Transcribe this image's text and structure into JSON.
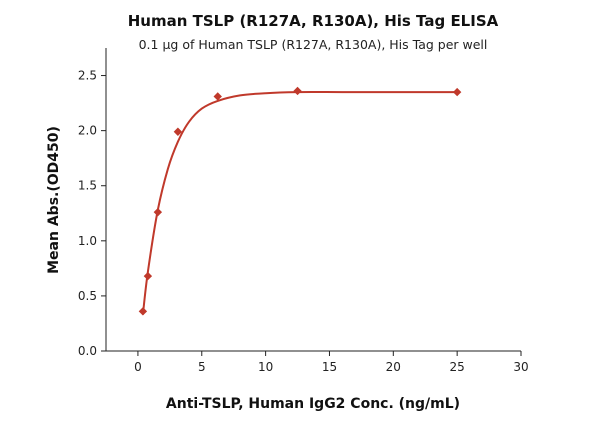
{
  "chart_data": {
    "type": "scatter",
    "title": "Human TSLP (R127A, R130A), His Tag ELISA",
    "subtitle": "0.1 µg of Human TSLP (R127A, R130A), His Tag per well",
    "xlabel": "Anti-TSLP, Human IgG2 Conc. (ng/mL)",
    "ylabel": "Mean Abs.(OD450)",
    "xlim": [
      -2.5,
      30
    ],
    "ylim": [
      0,
      2.75
    ],
    "xticks": [
      0,
      5,
      10,
      15,
      20,
      25,
      30
    ],
    "yticks": [
      0.0,
      0.5,
      1.0,
      1.5,
      2.0,
      2.5
    ],
    "xtick_labels": [
      "0",
      "5",
      "10",
      "15",
      "20",
      "25",
      "30"
    ],
    "ytick_labels": [
      "0.0",
      "0.5",
      "1.0",
      "1.5",
      "2.0",
      "2.5"
    ],
    "grid": false,
    "series": [
      {
        "x": [
          0.39,
          0.78,
          1.56,
          3.13,
          6.25,
          12.5,
          25
        ],
        "y": [
          0.36,
          0.68,
          1.26,
          1.99,
          2.31,
          2.36,
          2.35
        ],
        "fit": "4PL",
        "fit_curve": {
          "x": [
            0.39,
            0.78,
            1.56,
            2.34,
            3.13,
            4.0,
            5.0,
            6.25,
            8.0,
            10.0,
            12.5,
            16.0,
            20.0,
            25.0
          ],
          "y": [
            0.33,
            0.72,
            1.28,
            1.65,
            1.9,
            2.08,
            2.2,
            2.27,
            2.32,
            2.34,
            2.35,
            2.35,
            2.35,
            2.35
          ]
        }
      }
    ],
    "colors": {
      "series": "#c0392b",
      "axis": "#222222"
    }
  }
}
